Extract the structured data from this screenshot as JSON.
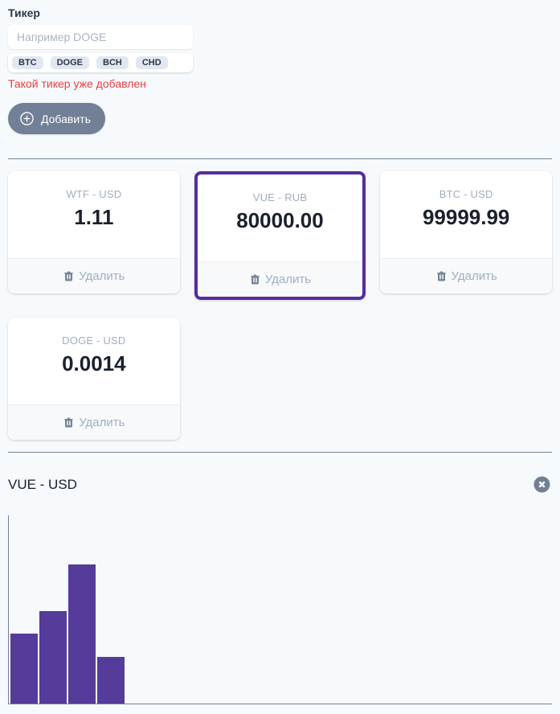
{
  "ticker_form": {
    "label": "Тикер",
    "input_placeholder": "Например DOGE",
    "input_value": "",
    "suggestions": [
      "BTC",
      "DOGE",
      "BCH",
      "CHD"
    ],
    "error_message": "Такой тикер уже добавлен",
    "add_button_label": "Добавить",
    "add_button_icon": "plus-circle-icon"
  },
  "cards": {
    "delete_label": "Удалить",
    "delete_icon": "trash-icon"
  },
  "tickers": [
    {
      "pair": "WTF - USD",
      "price": "1.11",
      "selected": false
    },
    {
      "pair": "VUE - RUB",
      "price": "80000.00",
      "selected": true
    },
    {
      "pair": "BTC - USD",
      "price": "99999.99",
      "selected": false
    },
    {
      "pair": "DOGE - USD",
      "price": "0.0014",
      "selected": false
    }
  ],
  "graph": {
    "title": "VUE - USD",
    "close_icon": "x-circle-icon"
  },
  "chart_data": {
    "type": "bar",
    "title": "VUE - USD",
    "categories": [
      "",
      "",
      "",
      ""
    ],
    "bar_heights_percent": [
      37,
      49,
      74,
      25
    ],
    "bar_color": "#553c9a",
    "xlabel": "",
    "ylabel": "",
    "axis_style": "left and bottom lines only, no ticks or labels",
    "legend": "none"
  },
  "colors": {
    "page_background": "#f7fafc",
    "accent_purple": "#553c9a",
    "selected_card_border": "#552d9e",
    "error_red": "#e53e3e",
    "button_gray": "#718096",
    "divider_gray": "#718096",
    "muted_text": "#a0aec0",
    "dark_text": "#1a202c"
  }
}
